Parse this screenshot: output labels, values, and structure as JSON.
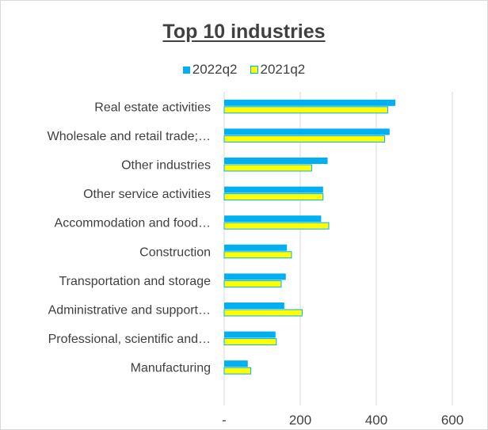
{
  "chart_data": {
    "type": "bar",
    "orientation": "horizontal",
    "title": "Top 10 industries",
    "categories": [
      "Real estate activities",
      "Wholesale and retail trade;…",
      "Other industries",
      "Other service activities",
      "Accommodation and food…",
      "Construction",
      "Transportation and storage",
      "Administrative and support…",
      "Professional, scientific and…",
      "Manufacturing"
    ],
    "series": [
      {
        "name": "2022q2",
        "values": [
          450,
          435,
          272,
          260,
          255,
          165,
          162,
          158,
          135,
          62
        ],
        "color": "#00b0f0"
      },
      {
        "name": "2021q2",
        "values": [
          430,
          422,
          230,
          260,
          275,
          177,
          150,
          205,
          137,
          70
        ],
        "color": "#ffff00"
      }
    ],
    "bar_border_color": "#00b0f0",
    "xlim": [
      0,
      600
    ],
    "xticks": [
      0,
      200,
      400,
      600
    ],
    "xtick_labels": [
      "-",
      "200",
      "400",
      "600"
    ],
    "grid": "vertical",
    "legend": "top-center",
    "xlabel": "",
    "ylabel": ""
  }
}
